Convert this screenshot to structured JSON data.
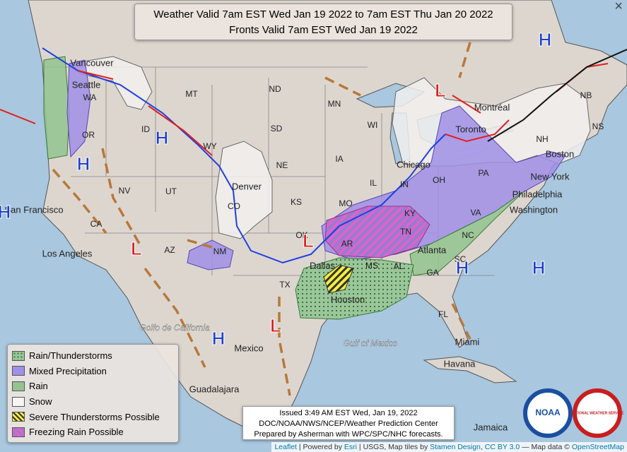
{
  "title": [
    "Weather Valid 7am EST Wed Jan 19 2022 to 7am EST Thu Jan 20 2022",
    "Fronts Valid 7am EST Wed Jan 19 2022"
  ],
  "close_button": "×",
  "legend": [
    "Rain/Thunderstorms",
    "Mixed Precipitation",
    "Rain",
    "Snow",
    "Severe Thunderstorms Possible",
    "Freezing Rain Possible"
  ],
  "issued": [
    "Issued 3:49 AM EST Wed, Jan 19, 2022",
    "DOC/NOAA/NWS/NCEP/Weather Prediction Center",
    "Prepared by Asherman with WPC/SPC/NHC forecasts."
  ],
  "attribution": [
    "Leaflet",
    " | Powered by ",
    "Esri",
    " | USGS, Map tiles by ",
    "Stamen Design",
    ", ",
    "CC BY 3.0",
    " — Map data © ",
    "OpenStreetMap"
  ],
  "logos": [
    "NOAA",
    "NATIONAL WEATHER SERVICE"
  ],
  "map_labels": [
    "MT",
    "ND",
    "MN",
    "WA",
    "OR",
    "ID",
    "WY",
    "SD",
    "WI",
    "NE",
    "IA",
    "IL",
    "IN",
    "OH",
    "PA",
    "NV",
    "UT",
    "CO",
    "KS",
    "MO",
    "KY",
    "VA",
    "NC",
    "TN",
    "AR",
    "SC",
    "GA",
    "AL",
    "MS",
    "TX",
    "OK",
    "NM",
    "AZ",
    "CA",
    "FL",
    "NB",
    "NS",
    "NH",
    "Vancouver",
    "Seattle",
    "San Francisco",
    "Los Angeles",
    "Denver",
    "Chicago",
    "Toronto",
    "Montréal",
    "New York",
    "Philadelphia",
    "Washington",
    "Atlanta",
    "Dallas",
    "Houston",
    "Mexico",
    "Guadalajara",
    "Havana",
    "Miami",
    "Boston",
    "Jamaica",
    "Golfo de California",
    "Gulf of Mexico"
  ],
  "pressure_centers": [
    "H",
    "H",
    "H",
    "H",
    "H",
    "H",
    "H",
    "L",
    "L",
    "L",
    "L"
  ]
}
